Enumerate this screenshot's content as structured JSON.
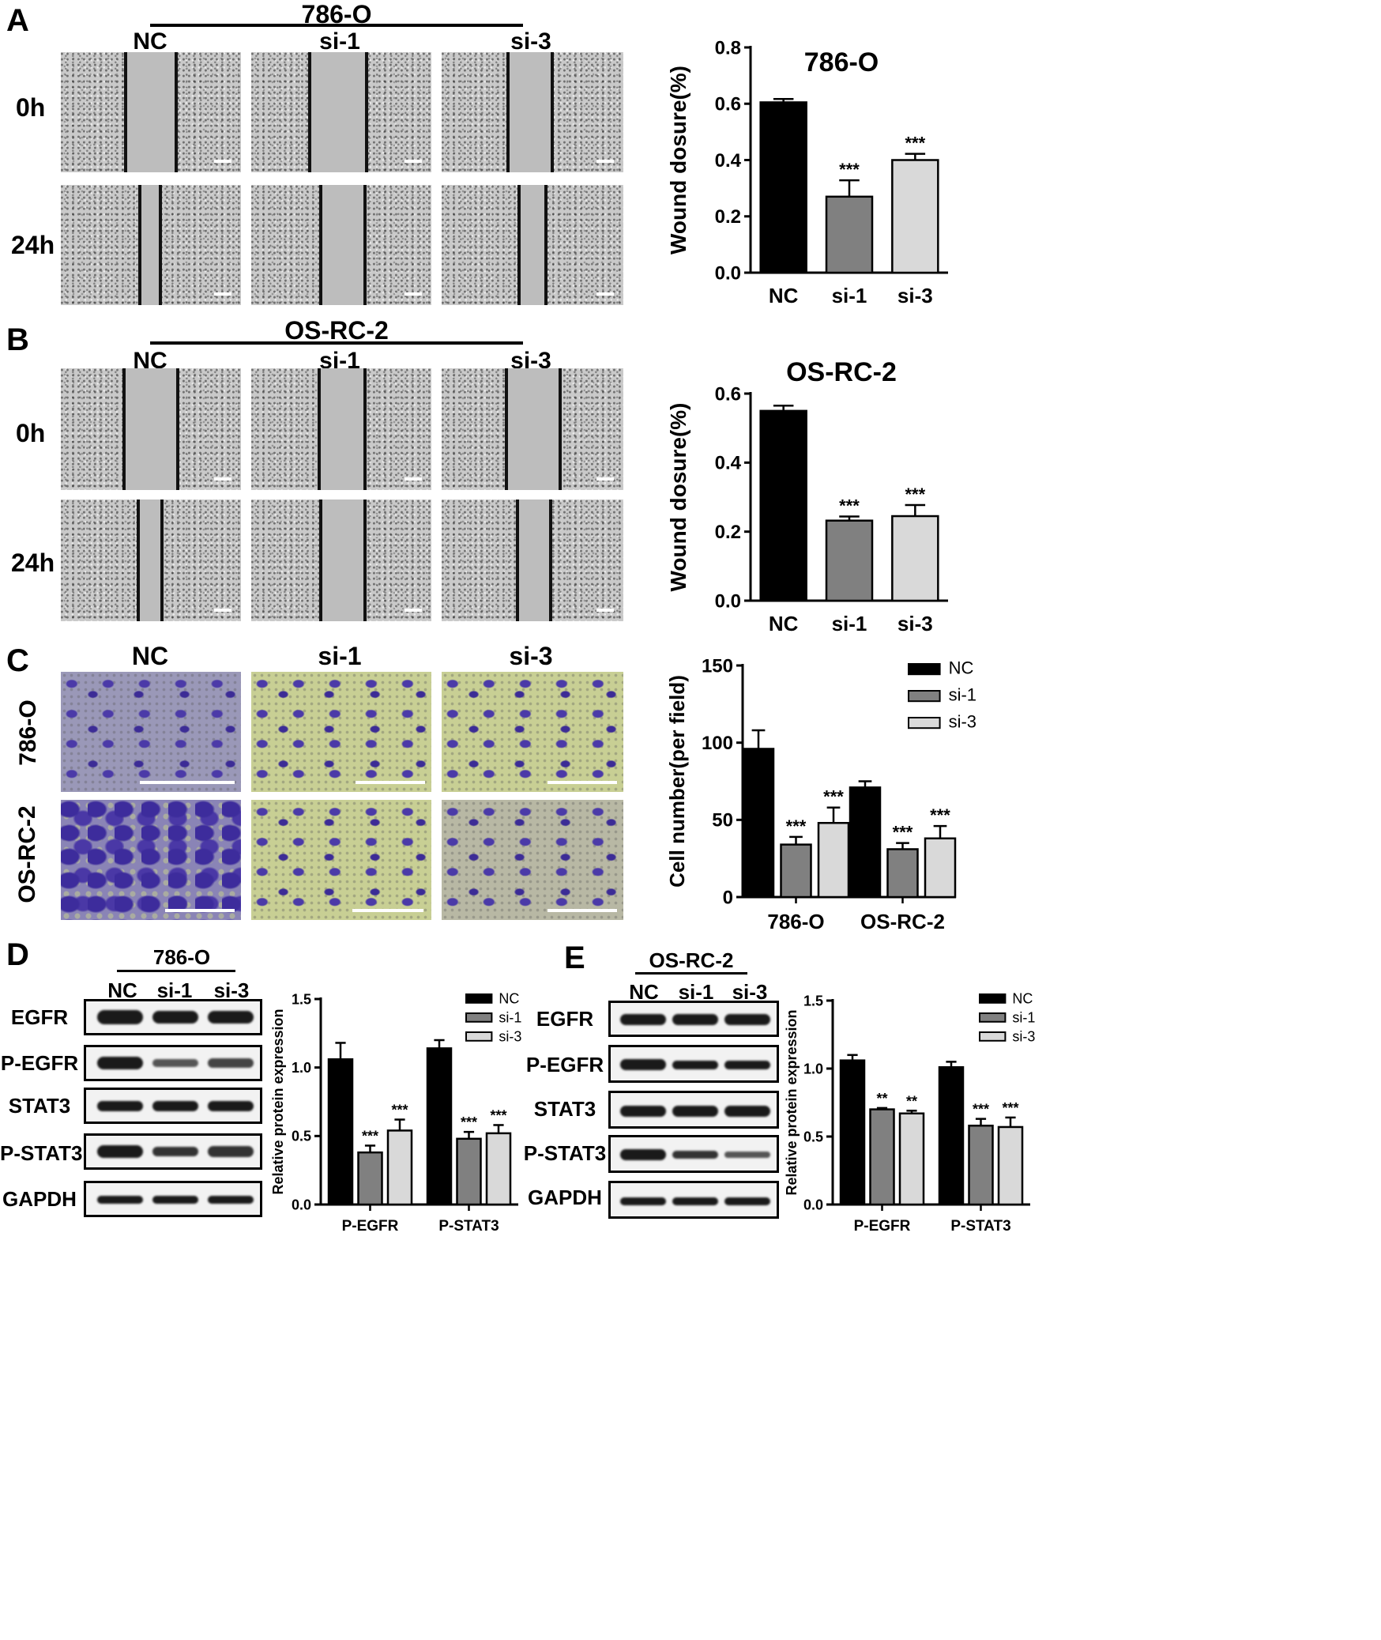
{
  "panels": {
    "A": {
      "letter": "A",
      "cell_line": "786-O",
      "groups": [
        "NC",
        "si-1",
        "si-3"
      ],
      "timepoints": [
        "0h",
        "24h"
      ]
    },
    "B": {
      "letter": "B",
      "cell_line": "OS-RC-2",
      "groups": [
        "NC",
        "si-1",
        "si-3"
      ],
      "timepoints": [
        "0h",
        "24h"
      ]
    },
    "C": {
      "letter": "C",
      "groups": [
        "NC",
        "si-1",
        "si-3"
      ],
      "rows": [
        "786-O",
        "OS-RC-2"
      ]
    },
    "D": {
      "letter": "D",
      "cell_line": "786-O",
      "lanes": [
        "NC",
        "si-1",
        "si-3"
      ],
      "proteins": [
        "EGFR",
        "P-EGFR",
        "STAT3",
        "P-STAT3",
        "GAPDH"
      ]
    },
    "E": {
      "letter": "E",
      "cell_line": "OS-RC-2",
      "lanes": [
        "NC",
        "si-1",
        "si-3"
      ],
      "proteins": [
        "EGFR",
        "P-EGFR",
        "STAT3",
        "P-STAT3",
        "GAPDH"
      ]
    }
  },
  "colors": {
    "NC": "#000000",
    "si-1": "#808080",
    "si-3": "#d9d9d9",
    "stain": "#4b3aa8",
    "stain_bg": "#c8cf94"
  },
  "chart_data": [
    {
      "type": "bar",
      "title": "786-O",
      "ylabel": "Wound dosure(%)",
      "categories": [
        "NC",
        "si-1",
        "si-3"
      ],
      "values": [
        0.605,
        0.27,
        0.4
      ],
      "errors": [
        0.012,
        0.058,
        0.022
      ],
      "significance": [
        "",
        "***",
        "***"
      ],
      "ylim": [
        0,
        0.8
      ],
      "yticks": [
        "0.0",
        "0.2",
        "0.4",
        "0.6",
        "0.8"
      ]
    },
    {
      "type": "bar",
      "title": "OS-RC-2",
      "ylabel": "Wound dosure(%)",
      "categories": [
        "NC",
        "si-1",
        "si-3"
      ],
      "values": [
        0.55,
        0.232,
        0.245
      ],
      "errors": [
        0.015,
        0.012,
        0.032
      ],
      "significance": [
        "",
        "***",
        "***"
      ],
      "ylim": [
        0,
        0.6
      ],
      "yticks": [
        "0.0",
        "0.2",
        "0.4",
        "0.6"
      ]
    },
    {
      "type": "bar",
      "title": "",
      "ylabel": "Cell number(per field)",
      "categories": [
        "786-O",
        "OS-RC-2"
      ],
      "series": [
        {
          "name": "NC",
          "values": [
            96,
            71
          ],
          "errors": [
            12,
            4
          ],
          "significance": [
            "",
            ""
          ]
        },
        {
          "name": "si-1",
          "values": [
            34,
            31
          ],
          "errors": [
            5,
            4
          ],
          "significance": [
            "***",
            "***"
          ]
        },
        {
          "name": "si-3",
          "values": [
            48,
            38
          ],
          "errors": [
            10,
            8
          ],
          "significance": [
            "***",
            "***"
          ]
        }
      ],
      "ylim": [
        0,
        150
      ],
      "yticks": [
        "0",
        "50",
        "100",
        "150"
      ],
      "legend": "top-right"
    },
    {
      "type": "bar",
      "title": "",
      "ylabel": "Relative protein expression",
      "categories": [
        "P-EGFR",
        "P-STAT3"
      ],
      "series": [
        {
          "name": "NC",
          "values": [
            1.06,
            1.14
          ],
          "errors": [
            0.12,
            0.06
          ],
          "significance": [
            "",
            ""
          ]
        },
        {
          "name": "si-1",
          "values": [
            0.38,
            0.48
          ],
          "errors": [
            0.05,
            0.05
          ],
          "significance": [
            "***",
            "***"
          ]
        },
        {
          "name": "si-3",
          "values": [
            0.54,
            0.52
          ],
          "errors": [
            0.08,
            0.06
          ],
          "significance": [
            "***",
            "***"
          ]
        }
      ],
      "ylim": [
        0,
        1.5
      ],
      "yticks": [
        "0.0",
        "0.5",
        "1.0",
        "1.5"
      ],
      "legend": "top-right"
    },
    {
      "type": "bar",
      "title": "",
      "ylabel": "Relative protein expression",
      "categories": [
        "P-EGFR",
        "P-STAT3"
      ],
      "series": [
        {
          "name": "NC",
          "values": [
            1.06,
            1.01
          ],
          "errors": [
            0.04,
            0.04
          ],
          "significance": [
            "",
            ""
          ]
        },
        {
          "name": "si-1",
          "values": [
            0.7,
            0.58
          ],
          "errors": [
            0.01,
            0.05
          ],
          "significance": [
            "**",
            "***"
          ]
        },
        {
          "name": "si-3",
          "values": [
            0.67,
            0.57
          ],
          "errors": [
            0.02,
            0.07
          ],
          "significance": [
            "**",
            "***"
          ]
        }
      ],
      "ylim": [
        0,
        1.5
      ],
      "yticks": [
        "0.0",
        "0.5",
        "1.0",
        "1.5"
      ],
      "legend": "top-right"
    }
  ]
}
